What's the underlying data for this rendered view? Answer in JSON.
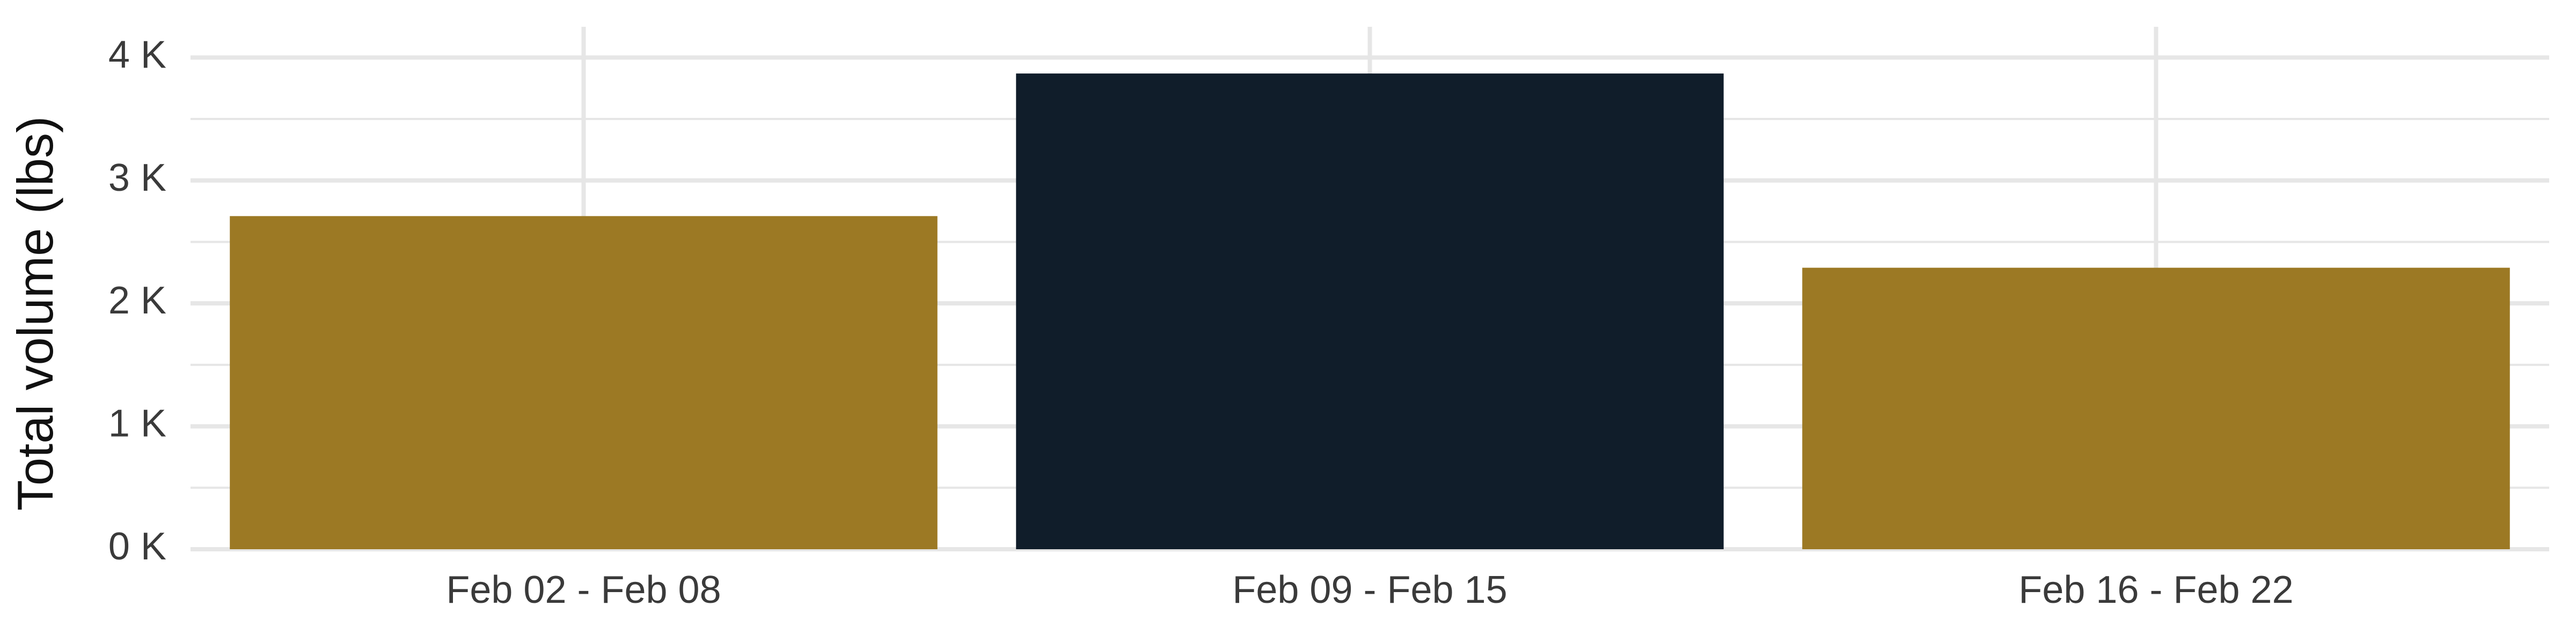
{
  "chart_data": {
    "type": "bar",
    "title": "",
    "xlabel": "",
    "ylabel": "Total volume (lbs)",
    "categories": [
      "Feb 02 - Feb 08",
      "Feb 09 - Feb 15",
      "Feb 16 - Feb 22"
    ],
    "values": [
      2710,
      3870,
      2290
    ],
    "bar_colors": [
      "#9c7924",
      "#101d2a",
      "#9c7924"
    ],
    "ylim": [
      0,
      4250
    ],
    "y_ticks": [
      0,
      1000,
      2000,
      3000,
      4000
    ],
    "y_tick_labels": [
      "0 K",
      "1 K",
      "2 K",
      "3 K",
      "4 K"
    ],
    "grid": true,
    "grid_color": "#e6e6e6",
    "background": "#ffffff",
    "legend": "none"
  }
}
